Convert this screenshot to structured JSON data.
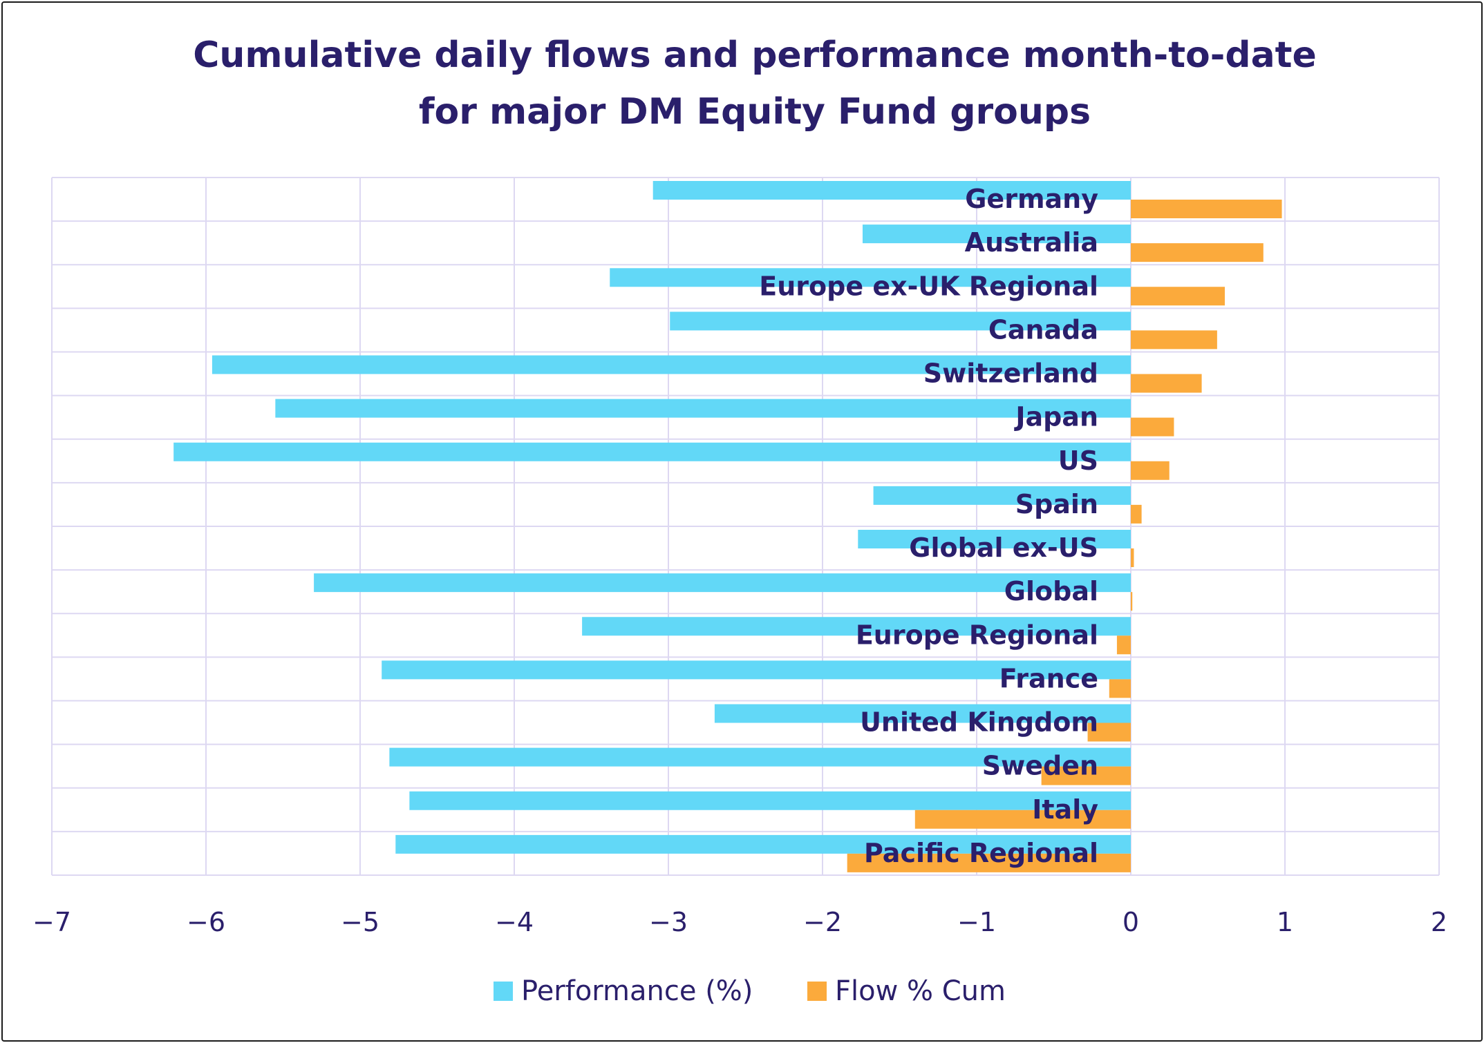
{
  "chart_data": {
    "type": "bar",
    "orientation": "horizontal",
    "title": "Cumulative daily flows and performance month-to-date for major DM Equity Fund groups",
    "title_lines": [
      "Cumulative daily flows and performance month-to-date",
      "for major DM Equity Fund groups"
    ],
    "xlabel": "",
    "ylabel": "",
    "xlim": [
      -7,
      2
    ],
    "xticks": [
      -7,
      -6,
      -5,
      -4,
      -3,
      -2,
      -1,
      0,
      1,
      2
    ],
    "xtick_labels": [
      "−7",
      "−6",
      "−5",
      "−4",
      "−3",
      "−2",
      "−1",
      "0",
      "1",
      "2"
    ],
    "grid": true,
    "legend_position": "bottom",
    "categories": [
      "Germany",
      "Australia",
      "Europe ex-UK Regional",
      "Canada",
      "Switzerland",
      "Japan",
      "US",
      "Spain",
      "Global ex-US",
      "Global",
      "Europe Regional",
      "France",
      "United Kingdom",
      "Sweden",
      "Italy",
      "Pacific Regional"
    ],
    "series": [
      {
        "name": "Performance (%)",
        "color": "#62d8f7",
        "values": [
          -3.1,
          -1.74,
          -3.38,
          -2.99,
          -5.96,
          -5.55,
          -6.21,
          -1.67,
          -1.77,
          -5.3,
          -3.56,
          -4.86,
          -2.7,
          -4.81,
          -4.68,
          -4.77
        ]
      },
      {
        "name": "Flow % Cum",
        "color": "#fbaa3c",
        "values": [
          0.98,
          0.86,
          0.61,
          0.56,
          0.46,
          0.28,
          0.25,
          0.07,
          0.02,
          0.01,
          -0.09,
          -0.14,
          -0.28,
          -0.58,
          -1.4,
          -1.84
        ]
      }
    ]
  }
}
